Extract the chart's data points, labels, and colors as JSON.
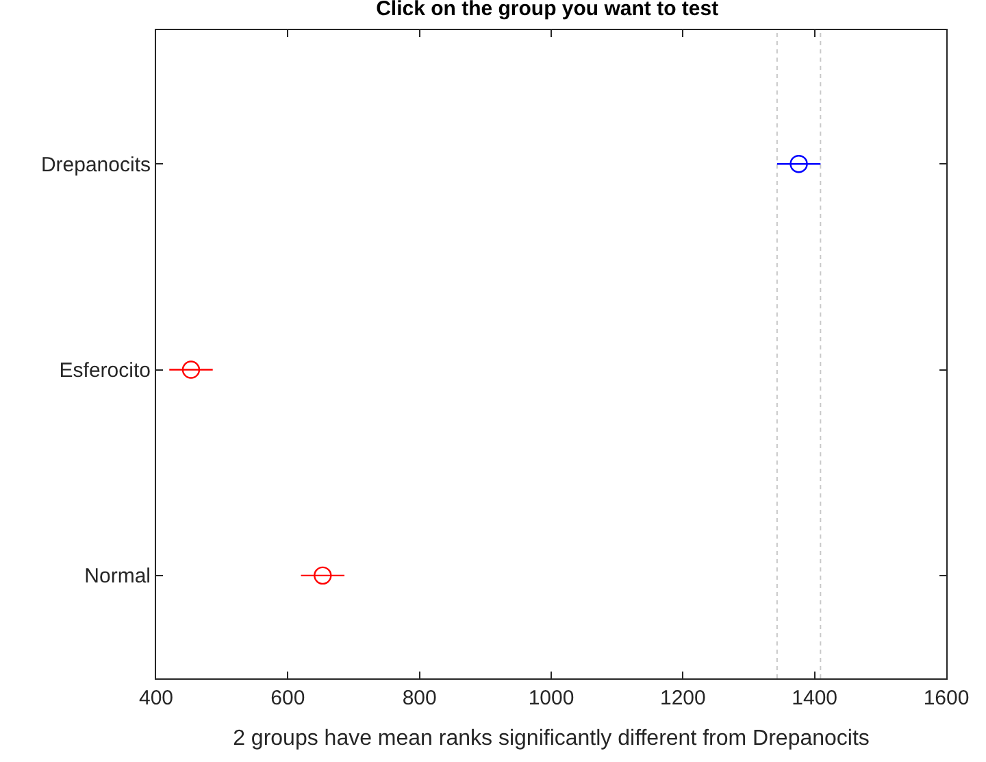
{
  "chart_data": {
    "type": "scatter",
    "orientation": "horizontal",
    "title": "Click on the group you want to test",
    "xlabel": "2 groups have mean ranks significantly different from Drepanocits",
    "categories": [
      "Drepanocits",
      "Esferocito",
      "Normal"
    ],
    "values": [
      1376,
      453,
      653
    ],
    "errors": [
      33,
      33,
      33
    ],
    "colors": [
      "#0000ff",
      "#ff0000",
      "#ff0000"
    ],
    "marker": "circle",
    "xlim": [
      400,
      1600
    ],
    "xticks": [
      400,
      600,
      800,
      1000,
      1200,
      1400,
      1600
    ],
    "ref_lines": [
      {
        "axis": "x",
        "value": 1343,
        "label": null,
        "color": "#c8c8c8",
        "line_style": "dotted"
      },
      {
        "axis": "x",
        "value": 1409,
        "label": null,
        "color": "#c8c8c8",
        "line_style": "dotted"
      }
    ],
    "grid": false
  }
}
